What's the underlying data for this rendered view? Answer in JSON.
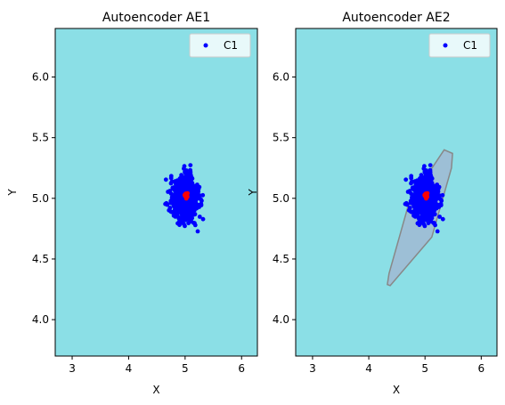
{
  "chart_data": [
    {
      "type": "scatter",
      "title": "Autoencoder AE1",
      "xlabel": "X",
      "ylabel": "Y",
      "xlim": [
        2.7,
        6.28
      ],
      "ylim": [
        3.7,
        6.4
      ],
      "xticks": [
        3,
        4,
        5,
        6
      ],
      "yticks": [
        4.0,
        4.5,
        5.0,
        5.5,
        6.0
      ],
      "ytick_labels": [
        "4.0",
        "4.5",
        "5.0",
        "5.5",
        "6.0"
      ],
      "background_color": "#8bdfe6",
      "grid": false,
      "legend": {
        "position": "top-right",
        "entries": [
          {
            "label": "C1",
            "color": "#0000ff"
          }
        ]
      },
      "series": [
        {
          "name": "C1",
          "color": "#0000ff",
          "center": [
            5.0,
            5.0
          ],
          "spread": [
            0.11,
            0.09
          ],
          "count": 800
        },
        {
          "color": "#ff0000",
          "center": [
            5.02,
            5.02
          ],
          "spread": [
            0.015,
            0.015
          ],
          "count": 25
        }
      ],
      "region": null
    },
    {
      "type": "scatter",
      "title": "Autoencoder AE2",
      "xlabel": "X",
      "ylabel": "Y",
      "xlim": [
        2.7,
        6.28
      ],
      "ylim": [
        3.7,
        6.4
      ],
      "xticks": [
        3,
        4,
        5,
        6
      ],
      "yticks": [
        4.0,
        4.5,
        5.0,
        5.5,
        6.0
      ],
      "ytick_labels": [
        "4.0",
        "4.5",
        "5.0",
        "5.5",
        "6.0"
      ],
      "background_color": "#8bdfe6",
      "grid": false,
      "legend": {
        "position": "top-right",
        "entries": [
          {
            "label": "C1",
            "color": "#0000ff"
          }
        ]
      },
      "series": [
        {
          "name": "C1",
          "color": "#0000ff",
          "center": [
            5.0,
            5.0
          ],
          "spread": [
            0.11,
            0.09
          ],
          "count": 800
        },
        {
          "color": "#ff0000",
          "center": [
            5.02,
            5.02
          ],
          "spread": [
            0.015,
            0.015
          ],
          "count": 25
        }
      ],
      "region": {
        "fill": "#9dbfd6",
        "stroke": "#888888",
        "points": [
          [
            4.33,
            4.29
          ],
          [
            4.36,
            4.38
          ],
          [
            4.72,
            4.97
          ],
          [
            5.34,
            5.4
          ],
          [
            5.49,
            5.37
          ],
          [
            5.47,
            5.25
          ],
          [
            5.12,
            4.68
          ],
          [
            4.38,
            4.28
          ]
        ]
      }
    }
  ]
}
